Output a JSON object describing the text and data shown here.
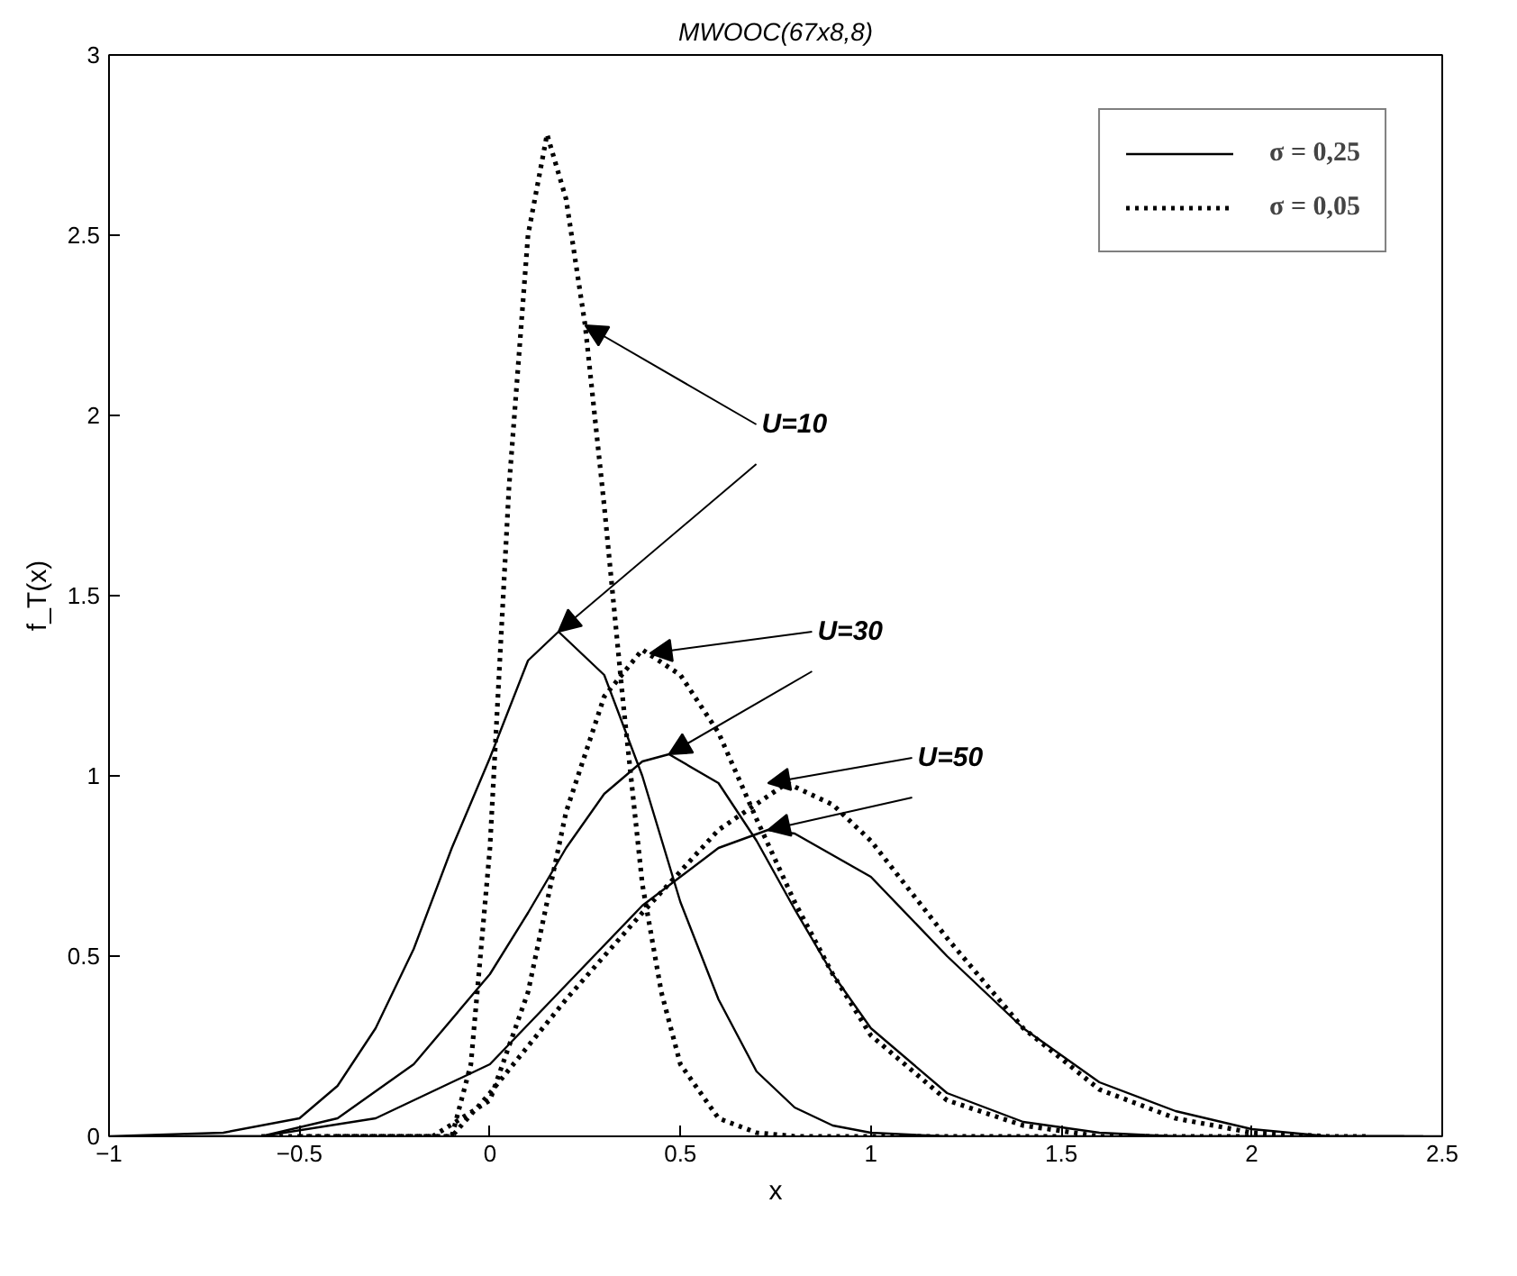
{
  "chart_data": {
    "type": "line",
    "title": "MWOOC(67x8,8)",
    "xlabel": "x",
    "ylabel": "f_T(x)",
    "xlim": [
      -1,
      2.5
    ],
    "xticks": [
      -1,
      -0.5,
      0,
      0.5,
      1,
      1.5,
      2,
      2.5
    ],
    "ylim": [
      0,
      3
    ],
    "yticks": [
      0,
      0.5,
      1,
      1.5,
      2,
      2.5,
      3
    ],
    "grid": false,
    "legend": "top right",
    "series": [
      {
        "name": "σ = 0,25",
        "color": "#000000",
        "line_style": "solid",
        "x": [
          -1,
          -0.7,
          -0.5,
          -0.4,
          -0.3,
          -0.2,
          -0.1,
          0,
          0.1,
          0.18,
          0.3,
          0.4,
          0.5,
          0.6,
          0.7,
          0.8,
          0.9,
          1.0,
          1.2,
          2.5
        ],
        "values": [
          0,
          0.01,
          0.05,
          0.14,
          0.3,
          0.52,
          0.8,
          1.05,
          1.32,
          1.4,
          1.28,
          1.0,
          0.65,
          0.38,
          0.18,
          0.08,
          0.03,
          0.01,
          0,
          0
        ]
      },
      {
        "color": "#000000",
        "line_style": "solid",
        "x": [
          -0.9,
          -0.6,
          -0.4,
          -0.2,
          0,
          0.1,
          0.2,
          0.3,
          0.4,
          0.47,
          0.6,
          0.7,
          0.8,
          0.9,
          1.0,
          1.2,
          1.4,
          1.6,
          1.8,
          2.4
        ],
        "values": [
          0,
          0,
          0.05,
          0.2,
          0.45,
          0.62,
          0.8,
          0.95,
          1.04,
          1.06,
          0.98,
          0.82,
          0.63,
          0.45,
          0.3,
          0.12,
          0.04,
          0.01,
          0,
          0
        ]
      },
      {
        "color": "#000000",
        "line_style": "solid",
        "x": [
          -0.8,
          -0.6,
          -0.3,
          0,
          0.2,
          0.4,
          0.5,
          0.6,
          0.73,
          0.8,
          1.0,
          1.2,
          1.4,
          1.6,
          1.8,
          2.0,
          2.2,
          2.45
        ],
        "values": [
          0,
          0,
          0.05,
          0.2,
          0.42,
          0.64,
          0.72,
          0.8,
          0.85,
          0.84,
          0.72,
          0.5,
          0.3,
          0.15,
          0.07,
          0.02,
          0,
          0
        ]
      },
      {
        "name": "σ = 0,05",
        "color": "#000000",
        "line_style": "dotted",
        "x": [
          -0.5,
          -0.1,
          -0.05,
          0,
          0.05,
          0.1,
          0.15,
          0.2,
          0.25,
          0.3,
          0.35,
          0.4,
          0.45,
          0.5,
          0.6,
          0.7,
          0.8,
          1.5
        ],
        "values": [
          0,
          0,
          0.2,
          0.8,
          1.8,
          2.5,
          2.78,
          2.6,
          2.25,
          1.75,
          1.2,
          0.7,
          0.4,
          0.2,
          0.05,
          0.01,
          0,
          0
        ]
      },
      {
        "color": "#000000",
        "line_style": "dotted",
        "x": [
          -0.6,
          -0.15,
          0,
          0.1,
          0.2,
          0.3,
          0.4,
          0.5,
          0.6,
          0.7,
          0.8,
          0.9,
          1.0,
          1.2,
          1.4,
          1.6,
          2.0
        ],
        "values": [
          0,
          0,
          0.1,
          0.4,
          0.9,
          1.22,
          1.35,
          1.28,
          1.12,
          0.88,
          0.65,
          0.45,
          0.28,
          0.1,
          0.03,
          0,
          0
        ]
      },
      {
        "color": "#000000",
        "line_style": "dotted",
        "x": [
          -0.4,
          -0.1,
          0,
          0.2,
          0.4,
          0.6,
          0.78,
          0.9,
          1.0,
          1.2,
          1.4,
          1.6,
          1.8,
          2.0,
          2.2,
          2.3
        ],
        "values": [
          0,
          0,
          0.12,
          0.38,
          0.62,
          0.85,
          0.98,
          0.92,
          0.82,
          0.55,
          0.3,
          0.13,
          0.05,
          0.01,
          0,
          0
        ]
      }
    ],
    "annotations": [
      {
        "text": "U=10",
        "x": 0.25,
        "y": 2.25
      },
      {
        "text": "U=30",
        "x": 0.42,
        "y": 1.34
      },
      {
        "text": "U=50",
        "x": 0.73,
        "y": 0.98
      }
    ]
  }
}
